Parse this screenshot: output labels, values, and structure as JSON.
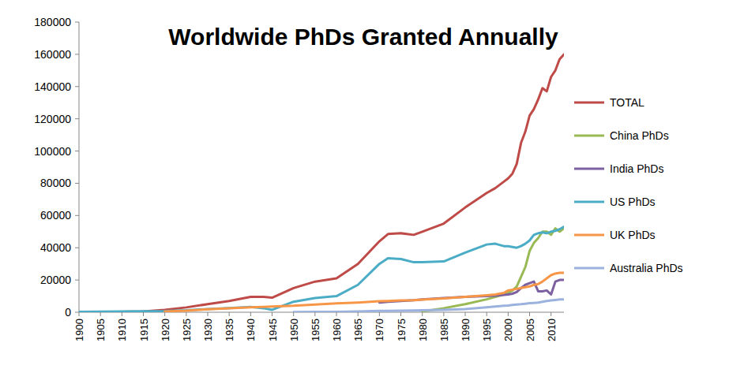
{
  "chart_data": {
    "type": "line",
    "title": "Worldwide PhDs Granted Annually",
    "x": [
      1900,
      1905,
      1910,
      1915,
      1920,
      1925,
      1930,
      1935,
      1940,
      1943,
      1945,
      1950,
      1955,
      1960,
      1965,
      1970,
      1972,
      1975,
      1978,
      1980,
      1985,
      1990,
      1995,
      1997,
      1999,
      2000,
      2001,
      2002,
      2003,
      2004,
      2005,
      2006,
      2007,
      2008,
      2009,
      2010,
      2011,
      2012,
      2013
    ],
    "series": [
      {
        "name": "TOTAL",
        "color": "#be4b48",
        "values": [
          0,
          0,
          200,
          500,
          1500,
          3000,
          5000,
          7000,
          9500,
          9500,
          9000,
          15000,
          19000,
          21000,
          30000,
          44000,
          48500,
          49000,
          48000,
          50000,
          55000,
          65000,
          74000,
          77000,
          81000,
          83000,
          86000,
          92000,
          105000,
          112000,
          122000,
          126000,
          132000,
          139000,
          137000,
          146000,
          150000,
          157000,
          160000
        ]
      },
      {
        "name": "China PhDs",
        "color": "#98b954",
        "values": [
          null,
          null,
          null,
          null,
          null,
          null,
          null,
          null,
          null,
          null,
          null,
          null,
          null,
          null,
          null,
          null,
          null,
          null,
          null,
          500,
          2500,
          5000,
          8000,
          9500,
          11000,
          12000,
          13500,
          16000,
          22000,
          28000,
          38000,
          43000,
          46000,
          50000,
          50000,
          48000,
          52000,
          50000,
          52000
        ]
      },
      {
        "name": "India PhDs",
        "color": "#7d60a0",
        "values": [
          null,
          null,
          null,
          null,
          null,
          null,
          null,
          null,
          null,
          null,
          null,
          null,
          null,
          null,
          null,
          6000,
          6500,
          7000,
          7500,
          8000,
          8800,
          9500,
          10000,
          10300,
          10800,
          11000,
          11500,
          12500,
          15000,
          17000,
          18000,
          19000,
          13000,
          13000,
          13500,
          11000,
          19000,
          20000,
          20000
        ]
      },
      {
        "name": "US PhDs",
        "color": "#4bacc6",
        "values": [
          300,
          400,
          500,
          600,
          700,
          1200,
          2000,
          2600,
          3300,
          2500,
          1500,
          6500,
          8800,
          10000,
          17000,
          30000,
          33500,
          33000,
          31000,
          31000,
          31500,
          37000,
          42000,
          42500,
          41000,
          41000,
          40500,
          40000,
          41000,
          42500,
          44500,
          48000,
          49000,
          49500,
          49000,
          50000,
          50500,
          51500,
          53000
        ]
      },
      {
        "name": "UK PhDs",
        "color": "#f79646",
        "values": [
          null,
          null,
          null,
          null,
          500,
          1000,
          1800,
          2500,
          3000,
          3300,
          3500,
          4000,
          4800,
          5500,
          6000,
          6800,
          7000,
          7300,
          7500,
          7800,
          8500,
          9500,
          10500,
          11000,
          12000,
          13500,
          14000,
          14500,
          15000,
          15500,
          16000,
          17000,
          17500,
          19000,
          21000,
          23000,
          24000,
          24500,
          24500
        ]
      },
      {
        "name": "Australia PhDs",
        "color": "#9bb1de",
        "values": [
          null,
          null,
          null,
          null,
          null,
          null,
          null,
          null,
          null,
          null,
          null,
          100,
          200,
          300,
          500,
          800,
          900,
          1000,
          1100,
          1200,
          1500,
          2000,
          3000,
          3500,
          4000,
          4200,
          4500,
          4800,
          5000,
          5300,
          5600,
          5800,
          6000,
          6500,
          7000,
          7300,
          7600,
          7900,
          8000
        ]
      }
    ],
    "xlim": [
      1900,
      2013
    ],
    "xticks": [
      1900,
      1905,
      1910,
      1915,
      1920,
      1925,
      1930,
      1935,
      1940,
      1945,
      1950,
      1955,
      1960,
      1965,
      1970,
      1975,
      1980,
      1985,
      1990,
      1995,
      2000,
      2005,
      2010
    ],
    "ylim": [
      0,
      180000
    ],
    "yticks": [
      0,
      20000,
      40000,
      60000,
      80000,
      100000,
      120000,
      140000,
      160000,
      180000
    ],
    "grid": false,
    "legend": "right"
  }
}
